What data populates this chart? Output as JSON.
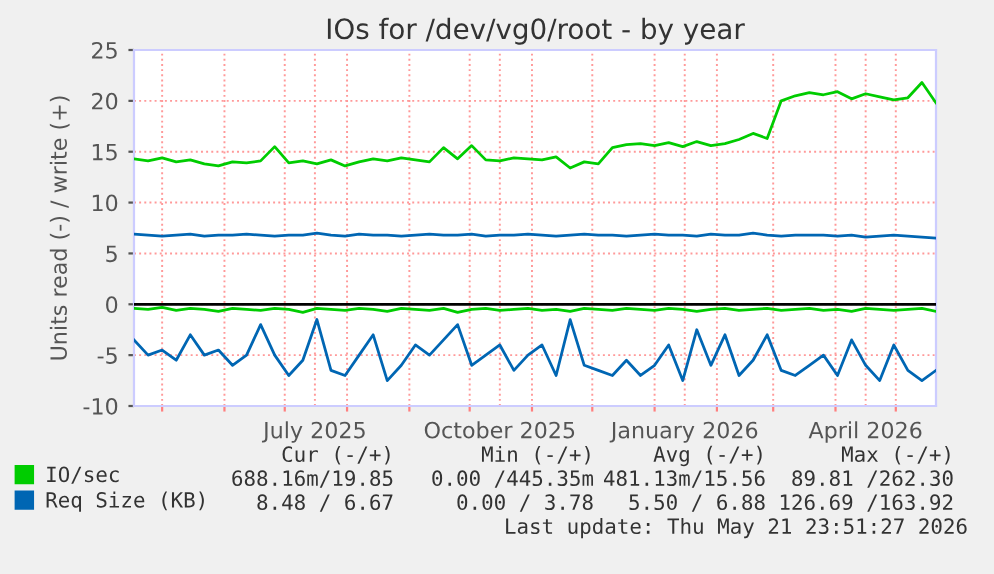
{
  "chart_data": {
    "type": "line",
    "title": "IOs for /dev/vg0/root - by year",
    "ylabel": "Units read (-) / write (+)",
    "x": [
      "2025-04-17",
      "2025-04-24",
      "2025-05-01",
      "2025-05-08",
      "2025-05-15",
      "2025-05-22",
      "2025-05-29",
      "2025-06-05",
      "2025-06-12",
      "2025-06-19",
      "2025-06-26",
      "2025-07-03",
      "2025-07-10",
      "2025-07-17",
      "2025-07-24",
      "2025-07-31",
      "2025-08-07",
      "2025-08-14",
      "2025-08-21",
      "2025-08-28",
      "2025-09-04",
      "2025-09-11",
      "2025-09-18",
      "2025-09-25",
      "2025-10-02",
      "2025-10-09",
      "2025-10-16",
      "2025-10-23",
      "2025-10-30",
      "2025-11-06",
      "2025-11-13",
      "2025-11-20",
      "2025-11-27",
      "2025-12-04",
      "2025-12-11",
      "2025-12-18",
      "2025-12-25",
      "2026-01-01",
      "2026-01-08",
      "2026-01-15",
      "2026-01-22",
      "2026-01-29",
      "2026-02-05",
      "2026-02-12",
      "2026-02-19",
      "2026-02-26",
      "2026-03-05",
      "2026-03-12",
      "2026-03-19",
      "2026-03-26",
      "2026-04-02",
      "2026-04-09",
      "2026-04-16",
      "2026-04-23",
      "2026-04-30",
      "2026-05-07",
      "2026-05-14",
      "2026-05-21"
    ],
    "series": [
      {
        "name": "IO/sec",
        "color": "#00cc00",
        "values": [
          14.3,
          14.1,
          14.4,
          14.0,
          14.2,
          13.8,
          13.6,
          14.0,
          13.9,
          14.1,
          15.5,
          13.9,
          14.1,
          13.8,
          14.2,
          13.6,
          14.0,
          14.3,
          14.1,
          14.4,
          14.2,
          14.0,
          15.4,
          14.3,
          15.6,
          14.2,
          14.1,
          14.4,
          14.3,
          14.2,
          14.5,
          13.4,
          14.0,
          13.8,
          15.4,
          15.7,
          15.8,
          15.6,
          15.9,
          15.5,
          16.0,
          15.6,
          15.8,
          16.2,
          16.8,
          16.3,
          20.0,
          20.5,
          20.8,
          20.6,
          20.9,
          20.2,
          20.7,
          20.4,
          20.1,
          20.3,
          21.8,
          19.8
        ]
      },
      {
        "color": "#00cc00",
        "values": [
          -0.4,
          -0.5,
          -0.3,
          -0.6,
          -0.4,
          -0.5,
          -0.7,
          -0.4,
          -0.5,
          -0.6,
          -0.4,
          -0.5,
          -0.8,
          -0.4,
          -0.5,
          -0.6,
          -0.4,
          -0.5,
          -0.7,
          -0.4,
          -0.5,
          -0.6,
          -0.4,
          -0.8,
          -0.5,
          -0.4,
          -0.6,
          -0.5,
          -0.4,
          -0.6,
          -0.5,
          -0.7,
          -0.4,
          -0.5,
          -0.6,
          -0.4,
          -0.5,
          -0.6,
          -0.4,
          -0.5,
          -0.7,
          -0.5,
          -0.4,
          -0.6,
          -0.5,
          -0.4,
          -0.6,
          -0.5,
          -0.4,
          -0.6,
          -0.5,
          -0.7,
          -0.4,
          -0.5,
          -0.6,
          -0.5,
          -0.4,
          -0.7
        ]
      },
      {
        "name": "Req Size (KB)",
        "color": "#0066b3",
        "values": [
          6.9,
          6.8,
          6.7,
          6.8,
          6.9,
          6.7,
          6.8,
          6.8,
          6.9,
          6.8,
          6.7,
          6.8,
          6.8,
          7.0,
          6.8,
          6.7,
          6.9,
          6.8,
          6.8,
          6.7,
          6.8,
          6.9,
          6.8,
          6.8,
          6.9,
          6.7,
          6.8,
          6.8,
          6.9,
          6.8,
          6.7,
          6.8,
          6.9,
          6.8,
          6.8,
          6.7,
          6.8,
          6.9,
          6.8,
          6.8,
          6.7,
          6.9,
          6.8,
          6.8,
          7.0,
          6.8,
          6.7,
          6.8,
          6.8,
          6.8,
          6.7,
          6.8,
          6.6,
          6.7,
          6.8,
          6.7,
          6.6,
          6.5
        ]
      },
      {
        "color": "#0066b3",
        "values": [
          -3.5,
          -5.0,
          -4.5,
          -5.5,
          -3.0,
          -5.0,
          -4.5,
          -6.0,
          -5.0,
          -2.0,
          -5.0,
          -7.0,
          -5.5,
          -1.5,
          -6.5,
          -7.0,
          -5.0,
          -3.0,
          -7.5,
          -6.0,
          -4.0,
          -5.0,
          -3.5,
          -2.0,
          -6.0,
          -5.0,
          -4.0,
          -6.5,
          -5.0,
          -4.0,
          -7.0,
          -1.5,
          -6.0,
          -6.5,
          -7.0,
          -5.5,
          -7.0,
          -6.0,
          -4.0,
          -7.5,
          -2.5,
          -6.0,
          -3.0,
          -7.0,
          -5.5,
          -3.0,
          -6.5,
          -7.0,
          -6.0,
          -5.0,
          -7.0,
          -3.5,
          -6.0,
          -7.5,
          -4.0,
          -6.5,
          -7.5,
          -6.5
        ]
      }
    ],
    "xlim": [
      "2025-04-17",
      "2026-05-21"
    ],
    "xticks": [
      {
        "value": "2025-05-01",
        "label": null
      },
      {
        "value": "2025-06-01",
        "label": null
      },
      {
        "value": "2025-07-01",
        "label": null
      },
      {
        "value": "2025-07-16",
        "label": "July 2025"
      },
      {
        "value": "2025-08-01",
        "label": null
      },
      {
        "value": "2025-09-01",
        "label": null
      },
      {
        "value": "2025-10-01",
        "label": null
      },
      {
        "value": "2025-10-16",
        "label": "October 2025"
      },
      {
        "value": "2025-11-01",
        "label": null
      },
      {
        "value": "2025-12-01",
        "label": null
      },
      {
        "value": "2026-01-01",
        "label": null
      },
      {
        "value": "2026-01-16",
        "label": "January 2026"
      },
      {
        "value": "2026-02-01",
        "label": null
      },
      {
        "value": "2026-03-01",
        "label": null
      },
      {
        "value": "2026-04-01",
        "label": null
      },
      {
        "value": "2026-04-16",
        "label": "April 2026"
      },
      {
        "value": "2026-05-01",
        "label": null
      }
    ],
    "ylim": [
      -10,
      25
    ],
    "yticks": [
      -10,
      -5,
      0,
      5,
      10,
      15,
      20,
      25
    ],
    "ref_lines": [
      {
        "axis": "y",
        "value": 0,
        "color": "#000000"
      }
    ],
    "grid": true,
    "legend": "bottom",
    "marker": "none",
    "line_style": "solid",
    "annotations": [
      "Cur (-/+)",
      "Min (-/+)",
      "Avg (-/+)",
      "Max (-/+)",
      "688.16m/19.85",
      "0.00 /445.35m",
      "481.13m/15.56",
      "89.81 /262.30",
      "8.48 / 6.67",
      "0.00 / 3.78",
      "5.50 / 6.88",
      "126.69 /163.92",
      "Last update: Thu May 21 23:51:27 2026"
    ]
  }
}
